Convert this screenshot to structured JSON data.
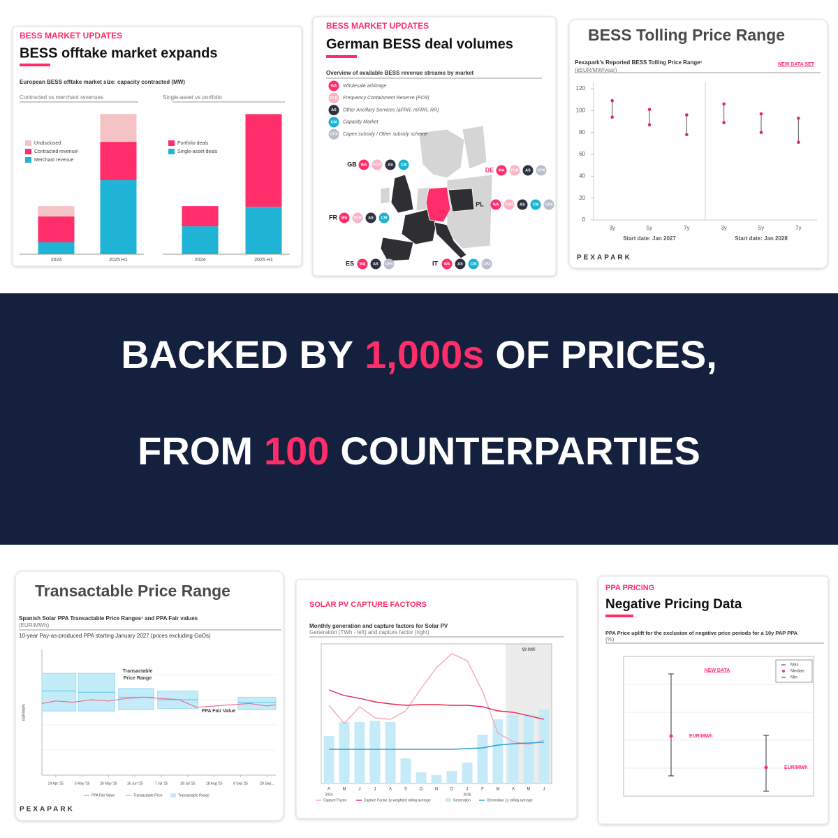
{
  "banner": {
    "line1": [
      "BACKED BY",
      "1,000s",
      "OF PRICES,"
    ],
    "line2": [
      "FROM",
      "100",
      "COUNTERPARTIES"
    ],
    "accent": "#ff2d6a",
    "background": "#14203d"
  },
  "map_panel": {
    "kicker": "BESS MARKET UPDATES",
    "title": "German BESS deal volumes",
    "subtitle": "Overview of available BESS revenue streams by market",
    "streams": [
      {
        "code": "WA",
        "label": "Wholesale arbitrage",
        "color": "#ff2d6a"
      },
      {
        "code": "FCR",
        "label": "Frequency Containment Reserve (FCR)",
        "color": "#f9b3c4"
      },
      {
        "code": "AS",
        "label": "Other Ancillary Services (aFRR, mFRR, RR)",
        "color": "#2e3140"
      },
      {
        "code": "CM",
        "label": "Capacity Market",
        "color": "#1cb3d3"
      },
      {
        "code": "CPX",
        "label": "Capex subsidy / Other subsidy scheme",
        "color": "#b8bdcb"
      }
    ],
    "countries": [
      {
        "label": "GB",
        "streams": [
          "WA",
          "FCR",
          "AS",
          "CM"
        ]
      },
      {
        "label": "DE",
        "streams": [
          "WA",
          "FCR",
          "AS",
          "CPX"
        ]
      },
      {
        "label": "PL",
        "streams": [
          "WA",
          "FCR",
          "AS",
          "CM",
          "CPX"
        ]
      },
      {
        "label": "FR",
        "streams": [
          "WA",
          "FCR",
          "AS",
          "CM"
        ]
      },
      {
        "label": "ES",
        "streams": [
          "WA",
          "AS",
          "CPX"
        ]
      },
      {
        "label": "IT",
        "streams": [
          "WA",
          "AS",
          "CM",
          "CPX"
        ]
      }
    ]
  },
  "chart_data": [
    {
      "type": "stacked_bar",
      "kicker": "BESS MARKET UPDATES",
      "title": "BESS offtake market expands",
      "subtitle": "European BESS offtake market size: capacity contracted (MW)",
      "label": "Contracted vs merchant revenues",
      "categories": [
        "2024",
        "2025 H1"
      ],
      "ylim": [
        0,
        5000
      ],
      "series": [
        {
          "name": "Merchant revenue",
          "color": "#1fb4d6",
          "values": [
            390,
            2430
          ]
        },
        {
          "name": "Contracted revenue¹",
          "color": "#ff2d6a",
          "values": [
            850,
            1260
          ]
        },
        {
          "name": "Undisclosed",
          "color": "#f4c3c6",
          "values": [
            340,
            915
          ]
        }
      ]
    },
    {
      "type": "stacked_bar",
      "label": "Single-asset vs portfolio",
      "categories": [
        "2024",
        "2025 H1"
      ],
      "ylim": [
        0,
        5000
      ],
      "series": [
        {
          "name": "Single-asset deals",
          "color": "#1fb4d6",
          "values": [
            915,
            1555
          ]
        },
        {
          "name": "Portfolio deals",
          "color": "#ff2d6a",
          "values": [
            665,
            3045
          ]
        }
      ]
    },
    {
      "type": "range_dot",
      "title": "BESS Tolling Price Range",
      "subtitle": "Pexapark's Reported BESS Tolling Price Range¹",
      "unit": "(kEUR/MW/year)",
      "badge": "NEW DATA SET",
      "logo": "PEXAPARK",
      "categories": [
        "3y",
        "5y",
        "7y",
        "3y",
        "5y",
        "7y"
      ],
      "groups": [
        "Start date: Jan 2027",
        "Start date: Jan 2028"
      ],
      "max": [
        109,
        101,
        96,
        106,
        97,
        93
      ],
      "min": [
        94,
        87,
        78,
        89,
        80,
        71
      ],
      "color": "#e8235a",
      "ylim": [
        0,
        120
      ],
      "yticks": [
        0,
        20,
        40,
        60,
        80,
        100,
        120
      ]
    },
    {
      "type": "range_band",
      "title": "Transactable Price Range",
      "subtitle": "Spanish Solar PPA Transactable Price Ranges¹ and PPA Fair values",
      "unit": "(EUR/MWh)",
      "note": "10-year Pay-as-produced PPA starting January 2027 (prices excluding GoOs)",
      "y_label": "EUR/MWh",
      "logo": "PEXAPARK",
      "range_annotation": [
        "Transactable",
        "Price Range"
      ],
      "xlim": [
        "2025-04-03",
        "2025-10-06"
      ],
      "ylim": [
        0,
        100
      ],
      "xticks": [
        {
          "value": "2025-04-14",
          "label": "14 Apr '25"
        },
        {
          "value": "2025-05-05",
          "label": "5 May '25"
        },
        {
          "value": "2025-05-26",
          "label": "26 May '25"
        },
        {
          "value": "2025-06-16",
          "label": "16 Jun '25"
        },
        {
          "value": "2025-07-07",
          "label": "7 Jul '25"
        },
        {
          "value": "2025-07-28",
          "label": "28 Jul '25"
        },
        {
          "value": "2025-08-18",
          "label": "18 Aug '25"
        },
        {
          "value": "2025-09-08",
          "label": "8 Sep '25"
        },
        {
          "value": "2025-09-29",
          "label": "29 Sep..."
        }
      ],
      "ranges": {
        "name": "Transactable Range",
        "price_name": "Transactable Price",
        "color": "#c4ebf8",
        "line_color": "#57c4e5",
        "items": [
          {
            "start": "2025-04-03",
            "end": "2025-04-30",
            "low": 51,
            "high": 81,
            "price": 67
          },
          {
            "start": "2025-05-02",
            "end": "2025-05-31",
            "low": 51,
            "high": 81,
            "price": 66
          },
          {
            "start": "2025-06-03",
            "end": "2025-07-01",
            "low": 52,
            "high": 69,
            "price": 62
          },
          {
            "start": "2025-07-04",
            "end": "2025-08-05",
            "low": 53,
            "high": 67,
            "price": 60
          },
          {
            "start": "2025-09-06",
            "end": "2025-10-06",
            "low": 52,
            "high": 62,
            "price": 58
          }
        ]
      },
      "fair_value": {
        "name": "PPA Fair Value",
        "color": "#f06b8a",
        "x": [
          "2025-04-03",
          "2025-04-14",
          "2025-04-28",
          "2025-05-12",
          "2025-05-26",
          "2025-06-09",
          "2025-06-23",
          "2025-07-07",
          "2025-07-21",
          "2025-07-28",
          "2025-08-04",
          "2025-08-18",
          "2025-09-01",
          "2025-09-15",
          "2025-09-29",
          "2025-10-06"
        ],
        "values": [
          57,
          59,
          58,
          60,
          59,
          61,
          62,
          61,
          60,
          57,
          54,
          55,
          56,
          57,
          55,
          56
        ]
      }
    },
    {
      "type": "bar_line",
      "kicker": "SOLAR PV CAPTURE FACTORS",
      "subtitle": "Monthly generation and capture factors for Solar PV",
      "note": "Generation (TWh - left) and capture factor (right)",
      "categories": [
        "A",
        "M",
        "J",
        "J",
        "A",
        "S",
        "O",
        "N",
        "D",
        "J",
        "F",
        "M",
        "A",
        "M",
        "J"
      ],
      "years": [
        "2024",
        "2025"
      ],
      "highlight": {
        "label": "Q2 2025",
        "start": 12,
        "end": 14
      },
      "ylim": [
        0,
        10
      ],
      "y2lim": [
        0,
        100
      ],
      "series": [
        {
          "name": "Capture Factor",
          "color": "#f7a8b0",
          "kind": "line",
          "axis": "y2",
          "values": [
            56,
            43,
            55,
            47,
            46,
            52,
            68,
            83,
            93,
            88,
            66,
            36,
            30,
            28,
            31
          ]
        },
        {
          "name": "Capture Factor 1y weighted rolling average",
          "color": "#e8234f",
          "kind": "line",
          "axis": "y2",
          "values": [
            67,
            63,
            61,
            58.5,
            57,
            56,
            56.5,
            56.5,
            56,
            56,
            55,
            52,
            51,
            48.5,
            46
          ]
        },
        {
          "name": "Generation",
          "color": "#c6ebf8",
          "kind": "bar",
          "values": [
            3.4,
            4.4,
            4.4,
            4.5,
            4.4,
            1.8,
            0.8,
            0.6,
            0.9,
            1.5,
            3.5,
            4.6,
            4.9,
            5.0,
            5.3
          ]
        },
        {
          "name": "Generation 1y rolling average",
          "color": "#2a9fd6",
          "kind": "line",
          "values": [
            2.45,
            2.45,
            2.45,
            2.45,
            2.45,
            2.45,
            2.45,
            2.45,
            2.45,
            2.5,
            2.55,
            2.75,
            2.85,
            2.9,
            2.95
          ]
        }
      ]
    },
    {
      "type": "range_median",
      "kicker": "PPA PRICING",
      "title": "Negative Pricing Data",
      "subtitle": "PPA Price uplift for the exclusion of negative price periods for a 10y PAP PPA",
      "unit": "(%)",
      "badge": "NEW DATA",
      "legend": [
        "Max",
        "Median",
        "Min"
      ],
      "value_unit": "EUR/MWh",
      "categories": [
        null,
        null
      ],
      "max": [
        17.5,
        8.7
      ],
      "median": [
        8.6,
        4.1
      ],
      "min": [
        2.9,
        0.7
      ],
      "color": "#ff2d6a",
      "ylim": [
        0,
        20
      ]
    }
  ]
}
